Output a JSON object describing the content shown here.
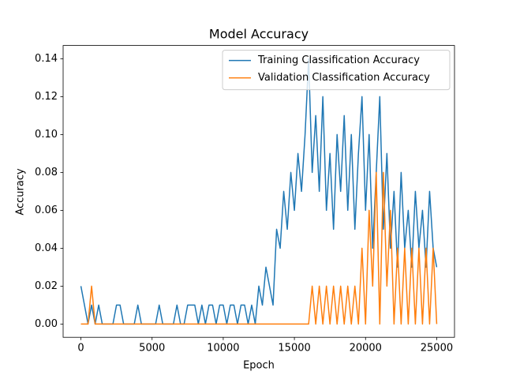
{
  "chart_data": {
    "type": "line",
    "title": "Model Accuracy",
    "x_label": "Epoch",
    "y_label": "Accuracy",
    "x": [
      0,
      250,
      500,
      750,
      1000,
      1250,
      1500,
      1750,
      2000,
      2250,
      2500,
      2750,
      3000,
      3250,
      3500,
      3750,
      4000,
      4250,
      4500,
      4750,
      5000,
      5250,
      5500,
      5750,
      6000,
      6250,
      6500,
      6750,
      7000,
      7250,
      7500,
      7750,
      8000,
      8250,
      8500,
      8750,
      9000,
      9250,
      9500,
      9750,
      10000,
      10250,
      10500,
      10750,
      11000,
      11250,
      11500,
      11750,
      12000,
      12250,
      12500,
      12750,
      13000,
      13250,
      13500,
      13750,
      14000,
      14250,
      14500,
      14750,
      15000,
      15250,
      15500,
      15750,
      16000,
      16250,
      16500,
      16750,
      17000,
      17250,
      17500,
      17750,
      18000,
      18250,
      18500,
      18750,
      19000,
      19250,
      19500,
      19750,
      20000,
      20250,
      20500,
      20750,
      21000,
      21250,
      21500,
      21750,
      22000,
      22250,
      22500,
      22750,
      23000,
      23250,
      23500,
      23750,
      24000,
      24250,
      24500,
      24750,
      25000
    ],
    "series": [
      {
        "name": "Training Classification Accuracy",
        "color": "#1f77b4",
        "values": [
          0.02,
          0.01,
          0,
          0.01,
          0,
          0.01,
          0,
          0,
          0,
          0,
          0.01,
          0.01,
          0,
          0,
          0,
          0,
          0.01,
          0,
          0,
          0,
          0,
          0,
          0.01,
          0,
          0,
          0,
          0,
          0.01,
          0,
          0,
          0.01,
          0.01,
          0.01,
          0,
          0.01,
          0,
          0.01,
          0.01,
          0,
          0.01,
          0.01,
          0,
          0.01,
          0.01,
          0,
          0.01,
          0.01,
          0,
          0.01,
          0,
          0.02,
          0.01,
          0.03,
          0.02,
          0.01,
          0.05,
          0.04,
          0.07,
          0.05,
          0.08,
          0.06,
          0.09,
          0.07,
          0.1,
          0.14,
          0.08,
          0.11,
          0.07,
          0.12,
          0.06,
          0.09,
          0.05,
          0.1,
          0.07,
          0.11,
          0.06,
          0.1,
          0.05,
          0.09,
          0.12,
          0.06,
          0.1,
          0.04,
          0.08,
          0.12,
          0.05,
          0.09,
          0.04,
          0.07,
          0.03,
          0.08,
          0.04,
          0.06,
          0.03,
          0.07,
          0.04,
          0.06,
          0.03,
          0.07,
          0.04,
          0.03
        ]
      },
      {
        "name": "Validation Classification Accuracy",
        "color": "#ff7f0e",
        "values": [
          0,
          0,
          0,
          0.02,
          0,
          0,
          0,
          0,
          0,
          0,
          0,
          0,
          0,
          0,
          0,
          0,
          0,
          0,
          0,
          0,
          0,
          0,
          0,
          0,
          0,
          0,
          0,
          0,
          0,
          0,
          0,
          0,
          0,
          0,
          0,
          0,
          0,
          0,
          0,
          0,
          0,
          0,
          0,
          0,
          0,
          0,
          0,
          0,
          0,
          0,
          0,
          0,
          0,
          0,
          0,
          0,
          0,
          0,
          0,
          0,
          0,
          0,
          0,
          0,
          0,
          0.02,
          0,
          0.02,
          0,
          0.02,
          0,
          0.02,
          0,
          0.02,
          0,
          0.02,
          0,
          0.02,
          0,
          0.04,
          0,
          0.06,
          0.02,
          0.08,
          0,
          0.08,
          0.02,
          0.06,
          0,
          0.04,
          0,
          0.04,
          0,
          0.04,
          0,
          0.04,
          0,
          0.04,
          0,
          0.04,
          0
        ]
      }
    ],
    "xlim": [
      -1250,
      26250
    ],
    "ylim": [
      -0.007,
      0.147
    ],
    "xticks": [
      0,
      5000,
      10000,
      15000,
      20000,
      25000
    ],
    "yticks": [
      {
        "value": 0,
        "label": "0.00"
      },
      {
        "value": 0.02,
        "label": "0.02"
      },
      {
        "value": 0.04,
        "label": "0.04"
      },
      {
        "value": 0.06,
        "label": "0.06"
      },
      {
        "value": 0.08,
        "label": "0.08"
      },
      {
        "value": 0.1,
        "label": "0.10"
      },
      {
        "value": 0.12,
        "label": "0.12"
      },
      {
        "value": 0.14,
        "label": "0.14"
      }
    ],
    "legend": "upper right"
  }
}
